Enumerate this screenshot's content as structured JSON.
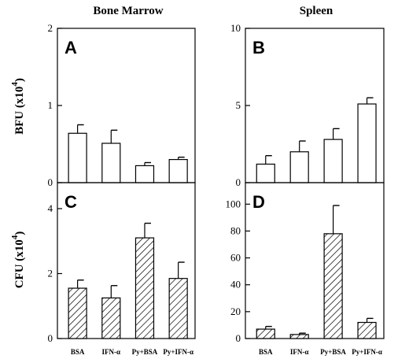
{
  "titles": {
    "left": "Bone Marrow",
    "right": "Spleen"
  },
  "ylabels": {
    "top": "BFU (x10",
    "bottom": "CFU (x10",
    "exponent": "4",
    "close": ")"
  },
  "colors": {
    "ink": "#000000",
    "open_fill": "#ffffff",
    "hatch": "#000000"
  },
  "chart_data": [
    {
      "panel": "A",
      "type": "bar",
      "fill": "open",
      "categories": [
        "BSA",
        "IFN-α",
        "Py+BSA",
        "Py+IFN-α"
      ],
      "values": [
        0.64,
        0.51,
        0.22,
        0.3
      ],
      "errors": [
        0.11,
        0.17,
        0.04,
        0.03
      ],
      "ylim": [
        0,
        2
      ],
      "yticks": [
        0,
        1,
        2
      ],
      "ylabel": "BFU (x10⁴)"
    },
    {
      "panel": "B",
      "type": "bar",
      "fill": "open",
      "categories": [
        "BSA",
        "IFN-α",
        "Py+BSA",
        "Py+IFN-α"
      ],
      "values": [
        1.2,
        2.0,
        2.8,
        5.1
      ],
      "errors": [
        0.55,
        0.7,
        0.7,
        0.4
      ],
      "ylim": [
        0,
        10
      ],
      "yticks": [
        0,
        5,
        10
      ]
    },
    {
      "panel": "C",
      "type": "bar",
      "fill": "hatched",
      "categories": [
        "BSA",
        "IFN-α",
        "Py+BSA",
        "Py+IFN-α"
      ],
      "values": [
        1.55,
        1.25,
        3.1,
        1.85
      ],
      "errors": [
        0.25,
        0.38,
        0.45,
        0.5
      ],
      "ylim": [
        0,
        4.8
      ],
      "yticks": [
        0,
        2,
        4
      ],
      "ylabel": "CFU (x10⁴)"
    },
    {
      "panel": "D",
      "type": "bar",
      "fill": "hatched",
      "categories": [
        "BSA",
        "IFN-α",
        "Py+BSA",
        "Py+IFN-α"
      ],
      "values": [
        7,
        3,
        78,
        12
      ],
      "errors": [
        2,
        1,
        21,
        3
      ],
      "ylim": [
        0,
        116
      ],
      "yticks": [
        0,
        20,
        40,
        60,
        80,
        100
      ]
    }
  ]
}
